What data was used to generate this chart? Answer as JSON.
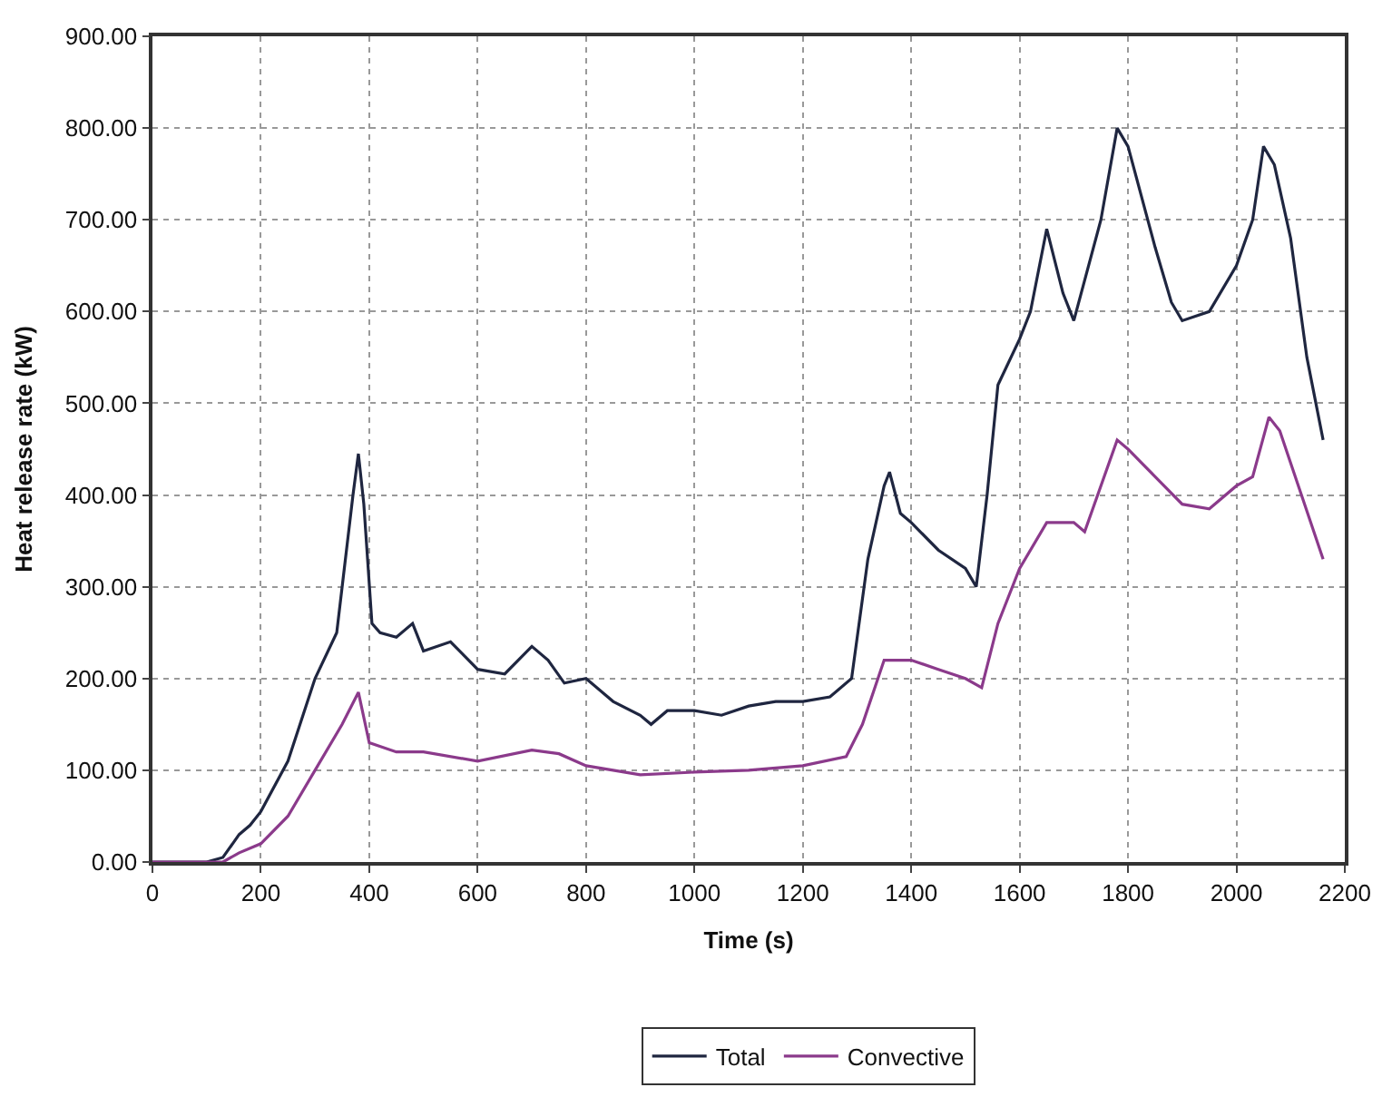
{
  "chart_data": {
    "type": "line",
    "xlabel": "Time (s)",
    "ylabel": "Heat release rate (kW)",
    "xlim": [
      0,
      2200
    ],
    "xticks": [
      0,
      200,
      400,
      600,
      800,
      1000,
      1200,
      1400,
      1600,
      1800,
      2000,
      2200
    ],
    "ylim": [
      0,
      900
    ],
    "yticks": [
      {
        "value": 0,
        "label": "0.00"
      },
      {
        "value": 100,
        "label": "100.00"
      },
      {
        "value": 200,
        "label": "200.00"
      },
      {
        "value": 300,
        "label": "300.00"
      },
      {
        "value": 400,
        "label": "400.00"
      },
      {
        "value": 500,
        "label": "500.00"
      },
      {
        "value": 600,
        "label": "600.00"
      },
      {
        "value": 700,
        "label": "700.00"
      },
      {
        "value": 800,
        "label": "800.00"
      },
      {
        "value": 900,
        "label": "900.00"
      }
    ],
    "grid": true,
    "legend": "bottom",
    "marker": "none",
    "line_style": "solid",
    "series": [
      {
        "name": "Total",
        "color": "#1f2640",
        "x": [
          0,
          100,
          130,
          160,
          180,
          200,
          250,
          300,
          340,
          370,
          380,
          390,
          405,
          420,
          450,
          480,
          500,
          550,
          600,
          650,
          700,
          730,
          760,
          800,
          850,
          900,
          920,
          950,
          1000,
          1050,
          1100,
          1150,
          1200,
          1250,
          1290,
          1320,
          1350,
          1360,
          1380,
          1400,
          1450,
          1500,
          1520,
          1540,
          1560,
          1600,
          1620,
          1650,
          1680,
          1700,
          1750,
          1780,
          1800,
          1850,
          1880,
          1900,
          1950,
          2000,
          2030,
          2050,
          2070,
          2100,
          2130,
          2160
        ],
        "values": [
          0,
          0,
          5,
          30,
          40,
          55,
          110,
          200,
          250,
          400,
          445,
          390,
          260,
          250,
          245,
          260,
          230,
          240,
          210,
          205,
          235,
          220,
          195,
          200,
          175,
          160,
          150,
          165,
          165,
          160,
          170,
          175,
          175,
          180,
          200,
          330,
          410,
          425,
          380,
          370,
          340,
          320,
          300,
          400,
          520,
          570,
          600,
          690,
          620,
          590,
          700,
          800,
          780,
          670,
          610,
          590,
          600,
          650,
          700,
          780,
          760,
          680,
          550,
          460
        ]
      },
      {
        "name": "Convective",
        "color": "#8b3a8b",
        "x": [
          0,
          130,
          160,
          200,
          250,
          300,
          350,
          380,
          400,
          450,
          500,
          600,
          700,
          750,
          800,
          900,
          1000,
          1100,
          1200,
          1280,
          1310,
          1350,
          1400,
          1450,
          1500,
          1530,
          1560,
          1600,
          1650,
          1700,
          1720,
          1780,
          1800,
          1850,
          1900,
          1950,
          2000,
          2030,
          2060,
          2080,
          2120,
          2160
        ],
        "values": [
          0,
          0,
          10,
          20,
          50,
          100,
          150,
          185,
          130,
          120,
          120,
          110,
          122,
          118,
          105,
          95,
          98,
          100,
          105,
          115,
          150,
          220,
          220,
          210,
          200,
          190,
          260,
          320,
          370,
          370,
          360,
          460,
          450,
          420,
          390,
          385,
          410,
          420,
          485,
          470,
          400,
          330
        ]
      }
    ]
  }
}
